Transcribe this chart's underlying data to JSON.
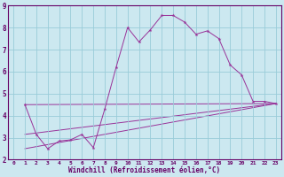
{
  "xlabel": "Windchill (Refroidissement éolien,°C)",
  "ylabel": "",
  "bg_color": "#cce8f0",
  "grid_color": "#99ccd9",
  "line_color": "#993399",
  "xlim": [
    -0.5,
    23.5
  ],
  "ylim": [
    2,
    9
  ],
  "xticks": [
    0,
    1,
    2,
    3,
    4,
    5,
    6,
    7,
    8,
    9,
    10,
    11,
    12,
    13,
    14,
    15,
    16,
    17,
    18,
    19,
    20,
    21,
    22,
    23
  ],
  "yticks": [
    2,
    3,
    4,
    5,
    6,
    7,
    8,
    9
  ],
  "series1_x": [
    1,
    2,
    3,
    4,
    5,
    6,
    7,
    8,
    9,
    10,
    11,
    12,
    13,
    14,
    15,
    16,
    17,
    18,
    19,
    20,
    21,
    22,
    23
  ],
  "series1_y": [
    4.5,
    3.15,
    2.5,
    2.85,
    2.9,
    3.15,
    2.55,
    4.3,
    6.2,
    8.0,
    7.35,
    7.9,
    8.55,
    8.55,
    8.25,
    7.7,
    7.85,
    7.5,
    6.3,
    5.85,
    4.65,
    4.65,
    4.55
  ],
  "line2_x": [
    1,
    23
  ],
  "line2_y": [
    4.5,
    4.55
  ],
  "line3_x": [
    1,
    23
  ],
  "line3_y": [
    3.15,
    4.55
  ],
  "line4_x": [
    1,
    23
  ],
  "line4_y": [
    2.5,
    4.55
  ],
  "marker_size": 3.0,
  "line_width": 0.7,
  "xlabel_fontsize": 5.5,
  "tick_fontsize_x": 4.5,
  "tick_fontsize_y": 5.5,
  "tick_color": "#660066"
}
